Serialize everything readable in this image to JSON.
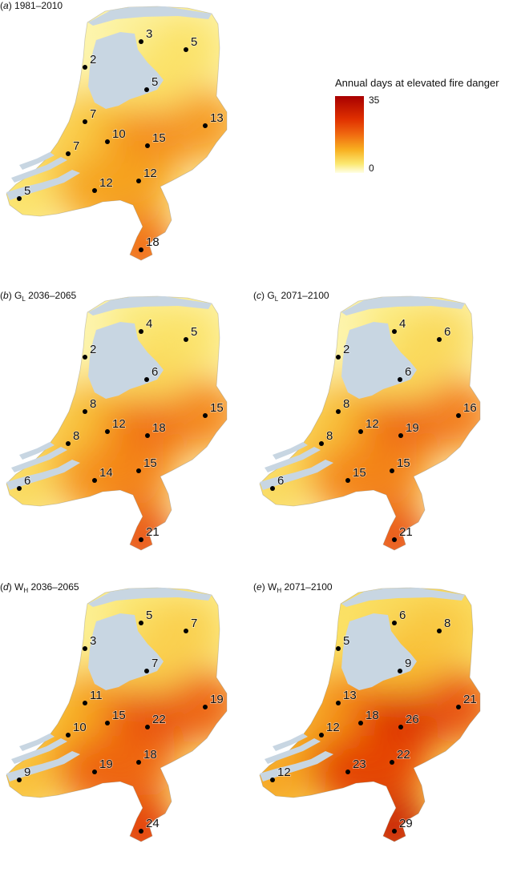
{
  "legend": {
    "title": "Annual days at elevated fire danger",
    "max": "35",
    "min": "0",
    "range": [
      0,
      35
    ]
  },
  "colors": {
    "water": "#c8d6e2",
    "low": "#ffffe6",
    "high": "#a80000"
  },
  "panels": [
    {
      "id": "a",
      "title_letter": "a",
      "title_main": "1981–2010",
      "title_sub": "",
      "title_tail": "",
      "values": [
        "3",
        "5",
        "2",
        "5",
        "7",
        "13",
        "10",
        "15",
        "7",
        "12",
        "12",
        "5",
        "18"
      ]
    },
    {
      "id": "b",
      "title_letter": "b",
      "title_main": "G",
      "title_sub": "L",
      "title_tail": " 2036–2065",
      "values": [
        "4",
        "5",
        "2",
        "6",
        "8",
        "15",
        "12",
        "18",
        "8",
        "14",
        "15",
        "6",
        "21"
      ]
    },
    {
      "id": "c",
      "title_letter": "c",
      "title_main": "G",
      "title_sub": "L",
      "title_tail": " 2071–2100",
      "values": [
        "4",
        "6",
        "2",
        "6",
        "8",
        "16",
        "12",
        "19",
        "8",
        "15",
        "15",
        "6",
        "21"
      ]
    },
    {
      "id": "d",
      "title_letter": "d",
      "title_main": "W",
      "title_sub": "H",
      "title_tail": " 2036–2065",
      "values": [
        "5",
        "7",
        "3",
        "7",
        "11",
        "19",
        "15",
        "22",
        "10",
        "19",
        "18",
        "9",
        "24"
      ]
    },
    {
      "id": "e",
      "title_letter": "e",
      "title_main": "W",
      "title_sub": "H",
      "title_tail": " 2071–2100",
      "values": [
        "6",
        "8",
        "5",
        "9",
        "13",
        "21",
        "18",
        "26",
        "12",
        "23",
        "22",
        "12",
        "29"
      ]
    }
  ]
}
